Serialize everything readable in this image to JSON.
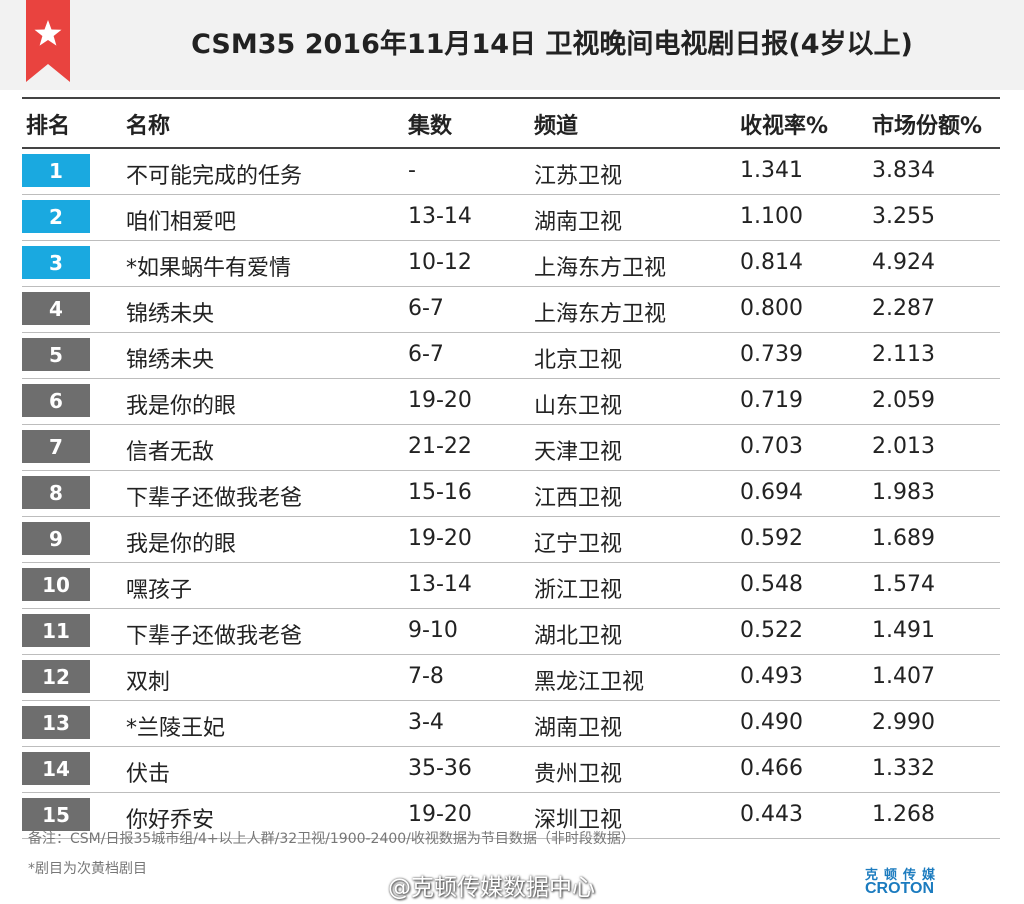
{
  "header": {
    "title": "CSM35   2016年11月14日  卫视晚间电视剧日报(4岁以上)",
    "ribbon_icon": "star-icon",
    "accent_color": "#e9433f"
  },
  "table": {
    "columns": {
      "rank": "排名",
      "name": "名称",
      "episodes": "集数",
      "channel": "频道",
      "rating": "收视率%",
      "share": "市场份额%"
    },
    "rows": [
      {
        "rank": "1",
        "name": "不可能完成的任务",
        "episodes": "-",
        "channel": "江苏卫视",
        "rating": "1.341",
        "share": "3.834",
        "highlight": true
      },
      {
        "rank": "2",
        "name": "咱们相爱吧",
        "episodes": "13-14",
        "channel": "湖南卫视",
        "rating": "1.100",
        "share": "3.255",
        "highlight": true
      },
      {
        "rank": "3",
        "name": "*如果蜗牛有爱情",
        "episodes": "10-12",
        "channel": "上海东方卫视",
        "rating": "0.814",
        "share": "4.924",
        "highlight": true
      },
      {
        "rank": "4",
        "name": "锦绣未央",
        "episodes": "6-7",
        "channel": "上海东方卫视",
        "rating": "0.800",
        "share": "2.287",
        "highlight": false
      },
      {
        "rank": "5",
        "name": "锦绣未央",
        "episodes": "6-7",
        "channel": "北京卫视",
        "rating": "0.739",
        "share": "2.113",
        "highlight": false
      },
      {
        "rank": "6",
        "name": "我是你的眼",
        "episodes": "19-20",
        "channel": "山东卫视",
        "rating": "0.719",
        "share": "2.059",
        "highlight": false
      },
      {
        "rank": "7",
        "name": "信者无敌",
        "episodes": "21-22",
        "channel": "天津卫视",
        "rating": "0.703",
        "share": "2.013",
        "highlight": false
      },
      {
        "rank": "8",
        "name": "下辈子还做我老爸",
        "episodes": "15-16",
        "channel": "江西卫视",
        "rating": "0.694",
        "share": "1.983",
        "highlight": false
      },
      {
        "rank": "9",
        "name": "我是你的眼",
        "episodes": "19-20",
        "channel": "辽宁卫视",
        "rating": "0.592",
        "share": "1.689",
        "highlight": false
      },
      {
        "rank": "10",
        "name": "嘿孩子",
        "episodes": "13-14",
        "channel": "浙江卫视",
        "rating": "0.548",
        "share": "1.574",
        "highlight": false
      },
      {
        "rank": "11",
        "name": "下辈子还做我老爸",
        "episodes": "9-10",
        "channel": "湖北卫视",
        "rating": "0.522",
        "share": "1.491",
        "highlight": false
      },
      {
        "rank": "12",
        "name": "双刺",
        "episodes": "7-8",
        "channel": "黑龙江卫视",
        "rating": "0.493",
        "share": "1.407",
        "highlight": false
      },
      {
        "rank": "13",
        "name": "*兰陵王妃",
        "episodes": "3-4",
        "channel": "湖南卫视",
        "rating": "0.490",
        "share": "2.990",
        "highlight": false
      },
      {
        "rank": "14",
        "name": "伏击",
        "episodes": "35-36",
        "channel": "贵州卫视",
        "rating": "0.466",
        "share": "1.332",
        "highlight": false
      },
      {
        "rank": "15",
        "name": "你好乔安",
        "episodes": "19-20",
        "channel": "深圳卫视",
        "rating": "0.443",
        "share": "1.268",
        "highlight": false
      }
    ],
    "colors": {
      "top_rank": "#1aa9e0",
      "other_rank": "#6e6e6e"
    }
  },
  "footer": {
    "note": "备注：CSM/日报35城市组/4+以上人群/32卫视/1900-2400/收视数据为节目数据（非时段数据）",
    "note2": "*剧目为次黄档剧目",
    "watermark": "@克顿传媒数据中心",
    "logo_cn": "克顿传媒",
    "logo_en": "CROTON"
  }
}
